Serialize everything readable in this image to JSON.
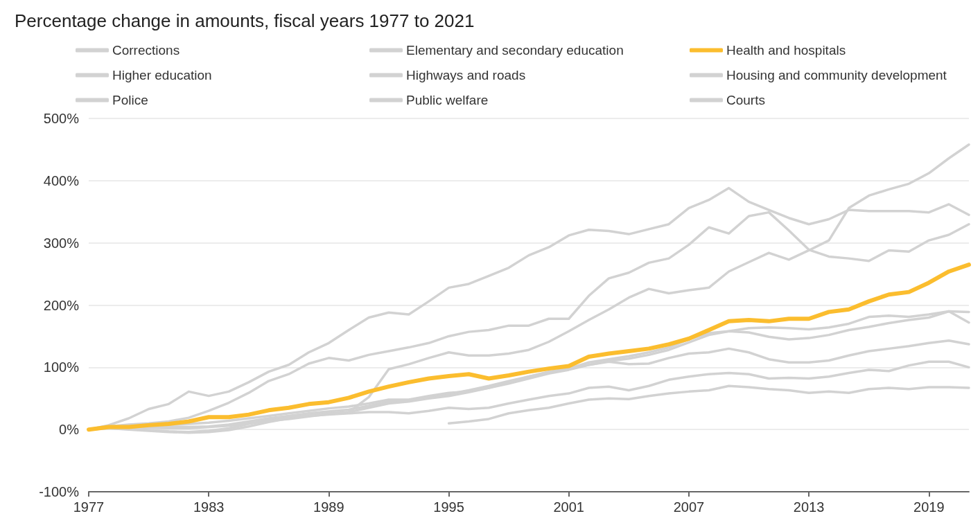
{
  "chart_data": {
    "type": "line",
    "title": "Percentage change in amounts, fiscal years 1977 to 2021",
    "x": [
      1977,
      1978,
      1979,
      1980,
      1981,
      1982,
      1983,
      1984,
      1985,
      1986,
      1987,
      1988,
      1989,
      1990,
      1991,
      1992,
      1993,
      1994,
      1995,
      1996,
      1997,
      1998,
      1999,
      2000,
      2001,
      2002,
      2003,
      2004,
      2005,
      2006,
      2007,
      2008,
      2009,
      2010,
      2011,
      2012,
      2013,
      2014,
      2015,
      2016,
      2017,
      2018,
      2019,
      2020,
      2021
    ],
    "series": [
      {
        "name": "Corrections",
        "color": "#d2d2d2",
        "values": [
          0,
          7,
          18,
          33,
          41,
          61,
          54,
          61,
          76,
          93,
          104,
          124,
          139,
          160,
          180,
          188,
          185,
          206,
          228,
          234,
          247,
          260,
          280,
          293,
          312,
          321,
          319,
          314,
          322,
          330,
          356,
          369,
          388,
          366,
          353,
          340,
          330,
          338,
          353,
          351,
          351,
          351,
          349,
          362,
          345
        ]
      },
      {
        "name": "Elementary and secondary education",
        "color": "#d2d2d2",
        "values": [
          0,
          5,
          8,
          10,
          13,
          19,
          30,
          43,
          59,
          78,
          89,
          106,
          115,
          111,
          120,
          126,
          132,
          139,
          150,
          157,
          160,
          167,
          167,
          178,
          178,
          215,
          243,
          252,
          268,
          275,
          297,
          325,
          315,
          343,
          349,
          320,
          289,
          278,
          275,
          271,
          288,
          286,
          304,
          313,
          330
        ]
      },
      {
        "name": "Health and hospitals",
        "color": "#fbbd2e",
        "values": [
          0,
          4,
          4,
          7,
          9,
          13,
          20,
          20,
          24,
          31,
          35,
          41,
          44,
          51,
          61,
          69,
          76,
          82,
          86,
          89,
          82,
          87,
          93,
          98,
          102,
          117,
          122,
          126,
          130,
          137,
          146,
          160,
          174,
          176,
          174,
          178,
          178,
          189,
          193,
          206,
          217,
          221,
          236,
          254,
          265
        ]
      },
      {
        "name": "Higher education",
        "color": "#d2d2d2",
        "values": [
          0,
          3,
          5,
          6,
          5,
          4,
          5,
          8,
          13,
          18,
          22,
          26,
          29,
          32,
          38,
          45,
          47,
          52,
          57,
          63,
          70,
          78,
          85,
          92,
          98,
          108,
          113,
          118,
          124,
          132,
          145,
          155,
          158,
          163,
          164,
          163,
          161,
          164,
          170,
          181,
          183,
          181,
          185,
          190,
          189
        ]
      },
      {
        "name": "Highways and roads",
        "color": "#d2d2d2",
        "values": [
          0,
          2,
          0,
          -2,
          -4,
          -5,
          -4,
          -1,
          5,
          12,
          18,
          22,
          24,
          26,
          28,
          28,
          26,
          30,
          35,
          33,
          35,
          42,
          48,
          54,
          58,
          67,
          69,
          63,
          70,
          80,
          85,
          89,
          91,
          89,
          82,
          83,
          82,
          85,
          91,
          96,
          94,
          103,
          109,
          109,
          100
        ]
      },
      {
        "name": "Housing and community development",
        "color": "#d2d2d2",
        "values": [
          0,
          2,
          1,
          -1,
          -3,
          -4,
          -2,
          2,
          9,
          15,
          19,
          23,
          26,
          28,
          35,
          42,
          45,
          50,
          54,
          60,
          67,
          74,
          82,
          90,
          96,
          104,
          110,
          114,
          120,
          128,
          140,
          152,
          158,
          156,
          149,
          145,
          147,
          152,
          160,
          165,
          171,
          176,
          180,
          190,
          172
        ]
      },
      {
        "name": "Police",
        "color": "#d2d2d2",
        "values": [
          0,
          4,
          6,
          7,
          8,
          9,
          11,
          14,
          18,
          22,
          26,
          30,
          34,
          37,
          42,
          48,
          48,
          54,
          59,
          61,
          67,
          76,
          85,
          93,
          98,
          104,
          109,
          105,
          106,
          115,
          122,
          124,
          130,
          124,
          113,
          108,
          108,
          111,
          119,
          126,
          130,
          134,
          139,
          143,
          137
        ]
      },
      {
        "name": "Public welfare",
        "color": "#d2d2d2",
        "values": [
          0,
          3,
          4,
          3,
          2,
          2,
          4,
          6,
          10,
          14,
          17,
          21,
          25,
          28,
          52,
          97,
          105,
          115,
          124,
          119,
          119,
          122,
          128,
          141,
          158,
          176,
          193,
          212,
          226,
          219,
          224,
          228,
          254,
          269,
          284,
          273,
          288,
          304,
          356,
          376,
          386,
          395,
          412,
          436,
          458
        ]
      },
      {
        "name": "Courts",
        "color": "#d2d2d2",
        "values": [
          null,
          null,
          null,
          null,
          null,
          null,
          null,
          null,
          null,
          null,
          null,
          null,
          null,
          null,
          null,
          null,
          null,
          null,
          10,
          13,
          17,
          26,
          31,
          35,
          42,
          48,
          50,
          49,
          54,
          58,
          61,
          63,
          70,
          68,
          65,
          63,
          59,
          61,
          59,
          65,
          67,
          65,
          68,
          68,
          67
        ]
      }
    ],
    "xlim": [
      1977,
      2021
    ],
    "xticks": [
      1977,
      1983,
      1989,
      1995,
      2001,
      2007,
      2013,
      2019
    ],
    "ylim": [
      -100,
      500
    ],
    "yticks": [
      {
        "value": -100,
        "label": "-100%"
      },
      {
        "value": 0,
        "label": "0%"
      },
      {
        "value": 100,
        "label": "100%"
      },
      {
        "value": 200,
        "label": "200%"
      },
      {
        "value": 300,
        "label": "300%"
      },
      {
        "value": 400,
        "label": "400%"
      },
      {
        "value": 500,
        "label": "500%"
      }
    ],
    "grid": "y",
    "legend": "top",
    "marker": "none",
    "line_style": "solid"
  }
}
